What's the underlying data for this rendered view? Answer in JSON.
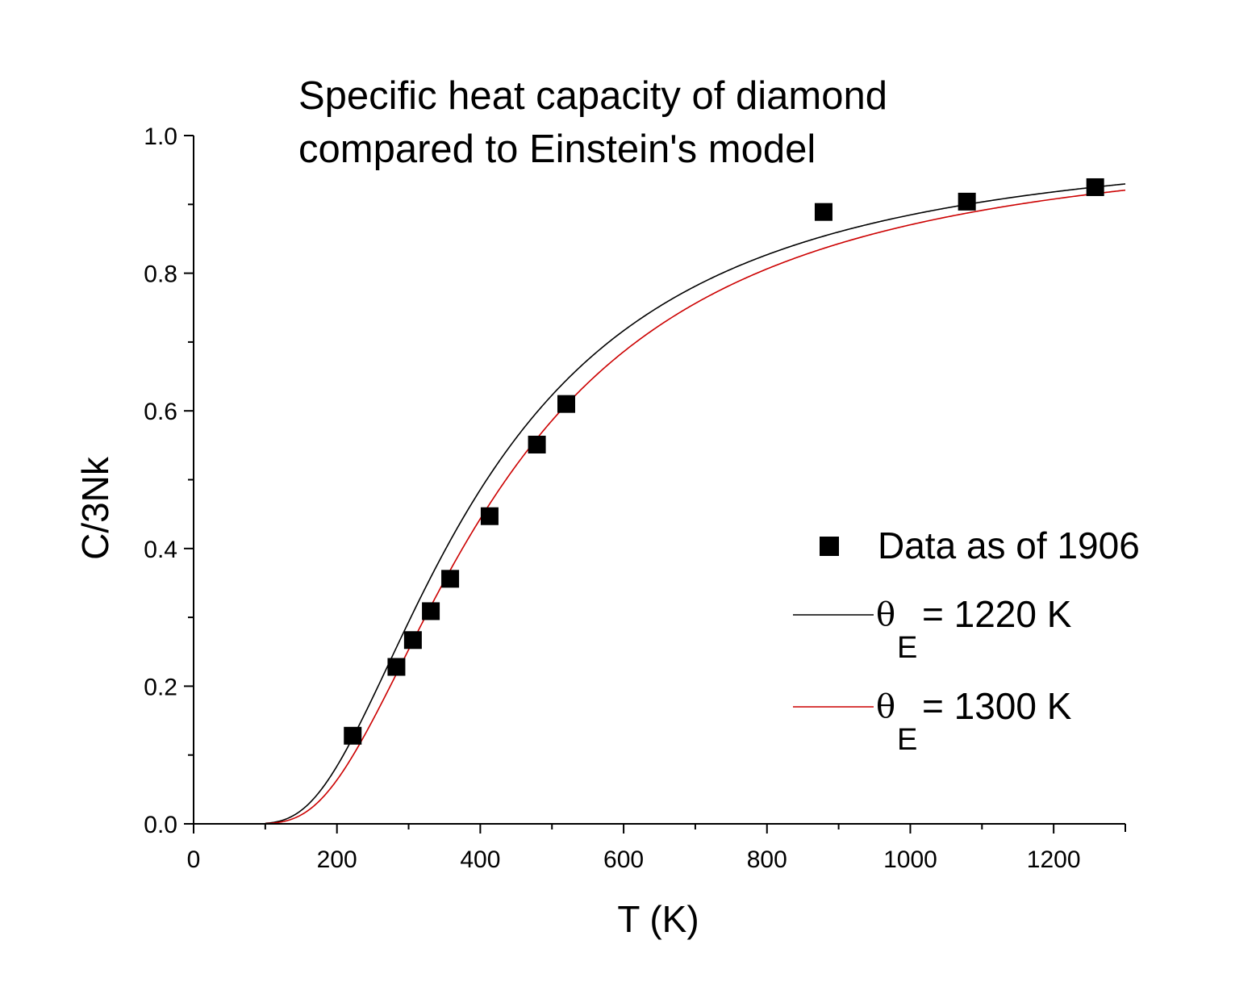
{
  "chart_data": {
    "type": "scatter",
    "title_lines": [
      "Specific heat capacity of diamond",
      "compared to Einstein's model"
    ],
    "xlabel": "T (K)",
    "ylabel": "C/3Nk",
    "xlim": [
      0,
      1300
    ],
    "ylim": [
      0,
      1.0
    ],
    "x_ticks": [
      0,
      200,
      400,
      600,
      800,
      1000,
      1200
    ],
    "x_tick_labels": [
      "0",
      "200",
      "400",
      "600",
      "800",
      "1000",
      "1200"
    ],
    "y_ticks": [
      0.0,
      0.2,
      0.4,
      0.6,
      0.8,
      1.0
    ],
    "y_tick_labels": [
      "0.0",
      "0.2",
      "0.4",
      "0.6",
      "0.8",
      "1.0"
    ],
    "grid": false,
    "legend_position": "right-middle",
    "series": [
      {
        "name": "Data as of 1906",
        "kind": "points",
        "color": "#000000",
        "x": [
          222,
          283,
          306,
          331,
          358,
          413,
          479,
          520,
          879,
          1079,
          1258
        ],
        "y": [
          0.128,
          0.228,
          0.267,
          0.309,
          0.356,
          0.447,
          0.551,
          0.61,
          0.889,
          0.904,
          0.925
        ]
      },
      {
        "name": "= 1220 K",
        "theta_symbol": "θ",
        "theta_subscript": "E",
        "kind": "einstein-curve",
        "theta_E": 1220,
        "color": "#000000",
        "x_range": [
          100,
          1300
        ]
      },
      {
        "name": "= 1300 K",
        "theta_symbol": "θ",
        "theta_subscript": "E",
        "kind": "einstein-curve",
        "theta_E": 1300,
        "color": "#cc0000",
        "x_range": [
          100,
          1300
        ]
      }
    ]
  }
}
